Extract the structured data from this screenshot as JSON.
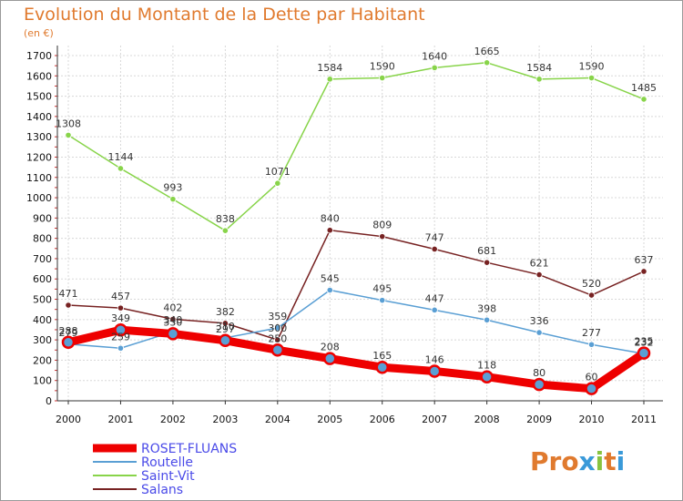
{
  "chart_data": {
    "type": "line",
    "title": "Evolution du Montant de la Dette par Habitant",
    "subtitle": "(en €)",
    "x": [
      "2000",
      "2001",
      "2002",
      "2003",
      "2004",
      "2005",
      "2006",
      "2007",
      "2008",
      "2009",
      "2010",
      "2011"
    ],
    "ylim": [
      0,
      1700
    ],
    "yticks": [
      0,
      100,
      200,
      300,
      400,
      500,
      600,
      700,
      800,
      900,
      1000,
      1100,
      1200,
      1300,
      1400,
      1500,
      1600,
      1700
    ],
    "grid": true,
    "legend_placement": "bottom-left",
    "series": [
      {
        "name": "ROSET-FLUANS",
        "color": "#ee0000",
        "values": [
          288,
          349,
          330,
          297,
          250,
          208,
          165,
          146,
          118,
          80,
          60,
          235
        ]
      },
      {
        "name": "Routelle",
        "color": "#5a9fd4",
        "values": [
          279,
          259,
          340,
          310,
          359,
          545,
          495,
          447,
          398,
          336,
          277,
          232
        ]
      },
      {
        "name": "Saint-Vit",
        "color": "#88d44a",
        "values": [
          1308,
          1144,
          993,
          838,
          1071,
          1584,
          1590,
          1640,
          1665,
          1584,
          1590,
          1485
        ]
      },
      {
        "name": "Salans",
        "color": "#772222",
        "values": [
          471,
          457,
          402,
          382,
          300,
          840,
          809,
          747,
          681,
          621,
          520,
          637
        ]
      }
    ]
  },
  "brand": {
    "text": "Proxiti",
    "letter_colors": [
      "#e07a2e",
      "#e07a2e",
      "#e07a2e",
      "#3a9ad9",
      "#88c440",
      "#e07a2e",
      "#3a9ad9"
    ]
  }
}
